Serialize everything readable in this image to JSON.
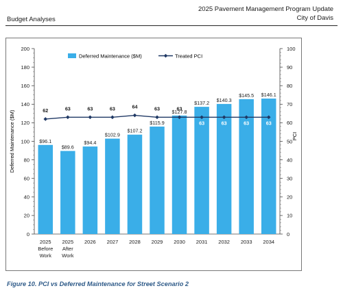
{
  "header": {
    "left": "Budget Analyses",
    "right_line1": "2025 Pavement Management Program Update",
    "right_line2": "City of Davis"
  },
  "figure_caption": "Figure 10. PCI vs Deferred Maintenance for Street Scenario 2",
  "colors": {
    "bar": "#3aaee8",
    "line": "#1f3864",
    "text": "#1a1a1a"
  },
  "chart_data": {
    "type": "bar",
    "categories": [
      [
        "2025",
        "Before",
        "Work"
      ],
      [
        "2025",
        "After",
        "Work"
      ],
      [
        "2026"
      ],
      [
        "2027"
      ],
      [
        "2028"
      ],
      [
        "2029"
      ],
      [
        "2030"
      ],
      [
        "2031"
      ],
      [
        "2032"
      ],
      [
        "2033"
      ],
      [
        "2034"
      ]
    ],
    "series": [
      {
        "name": "Deferred Maintenance ($M)",
        "type": "bar",
        "axis": "left",
        "values": [
          96.1,
          89.6,
          94.4,
          102.9,
          107.2,
          115.9,
          127.8,
          137.2,
          140.3,
          145.5,
          146.1
        ],
        "labels": [
          "$96.1",
          "$89.6",
          "$94.4",
          "$102.9",
          "$107.2",
          "$115.9",
          "$127.8",
          "$137.2",
          "$140.3",
          "$145.5",
          "$146.1"
        ]
      },
      {
        "name": "Treated PCI",
        "type": "line",
        "axis": "right",
        "values": [
          62,
          63,
          63,
          63,
          64,
          63,
          63,
          63,
          63,
          63,
          63
        ],
        "labels": [
          "62",
          "63",
          "63",
          "63",
          "64",
          "63",
          "63",
          "63",
          "63",
          "63",
          "63"
        ]
      }
    ],
    "ylabel": "Deferred Maintenance ($M)",
    "y2label": "PCI",
    "ylim": [
      0,
      200
    ],
    "y2lim": [
      0,
      100
    ],
    "yticks": [
      "0",
      "20",
      "40",
      "60",
      "80",
      "100",
      "120",
      "140",
      "160",
      "180",
      "200"
    ],
    "y2ticks": [
      "0",
      "10",
      "20",
      "30",
      "40",
      "50",
      "60",
      "70",
      "80",
      "90",
      "100"
    ],
    "legend_position": "top-center",
    "grid": false
  }
}
